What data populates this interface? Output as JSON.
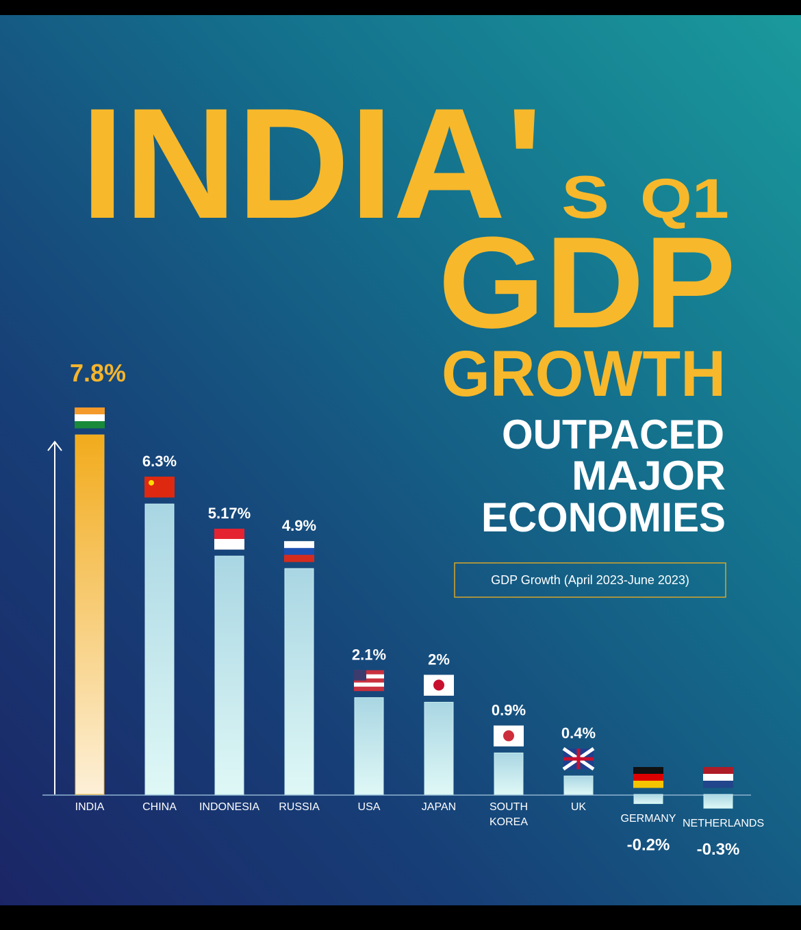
{
  "chart_data": {
    "type": "bar",
    "title": [
      "INDIA'",
      "S",
      "Q1",
      "GDP",
      "GROWTH"
    ],
    "subtitle": [
      "OUTPACED",
      "MAJOR",
      "ECONOMIES"
    ],
    "caption": "GDP Growth (April 2023-June 2023)",
    "categories": [
      "INDIA",
      "CHINA",
      "INDONESIA",
      "RUSSIA",
      "USA",
      "JAPAN",
      "SOUTH KOREA",
      "UK",
      "GERMANY",
      "NETHERLANDS"
    ],
    "values": [
      7.8,
      6.3,
      5.17,
      4.9,
      2.1,
      2,
      0.9,
      0.4,
      -0.2,
      -0.3
    ],
    "value_labels": [
      "7.8%",
      "6.3%",
      "5.17%",
      "4.9%",
      "2.1%",
      "2%",
      "0.9%",
      "0.4%",
      "-0.2%",
      "-0.3%"
    ],
    "highlight_color": "#f6b52c",
    "color": "#c8eef0"
  }
}
